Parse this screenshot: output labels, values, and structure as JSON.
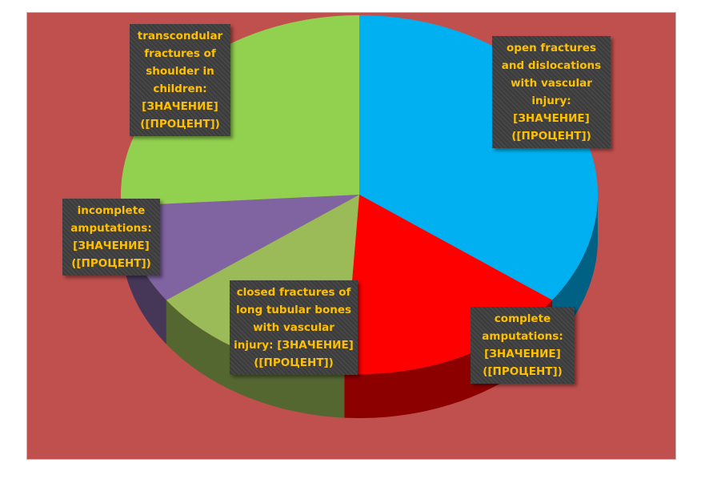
{
  "chart_data": {
    "type": "pie3d",
    "categories": [
      "open fractures and dislocations with vascular injury",
      "complete amputations",
      "closed fractures of long tubular bones with vascular injury",
      "incomplete amputations",
      "transcondular fractures of shoulder in children"
    ],
    "values": [
      35,
      16,
      14,
      9,
      26
    ],
    "colors": [
      "#00b0f0",
      "#ff0000",
      "#9bbb59",
      "#8064a2",
      "#92d050"
    ],
    "label_separator": ":",
    "value_placeholder": "[ЗНАЧЕНИЕ]",
    "percent_placeholder": "([ПРОЦЕНТ])"
  }
}
